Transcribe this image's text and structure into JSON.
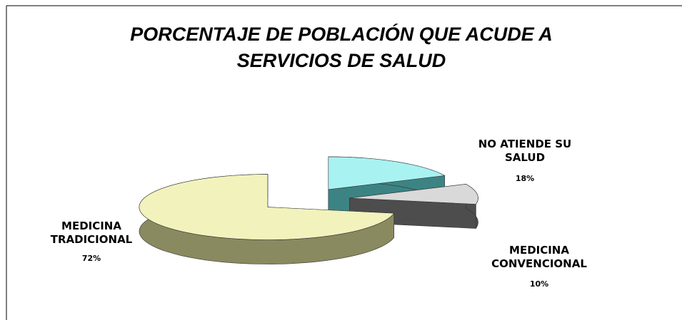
{
  "chart_data": {
    "type": "pie3d",
    "title": "PORCENTAJE DE POBLACIÓN QUE ACUDE A SERVICIOS DE SALUD",
    "categories": [
      "NO ATIENDE SU SALUD",
      "MEDICINA CONVENCIONAL",
      "MEDICINA TRADICIONAL"
    ],
    "values": [
      18,
      10,
      72
    ],
    "value_labels": [
      "18%",
      "10%",
      "72%"
    ],
    "colors": [
      "#a8f2f2",
      "#d9d9d9",
      "#f2f2bc"
    ],
    "side_colors": [
      "#3c8484",
      "#4d4d4d",
      "#8a8a60"
    ]
  }
}
